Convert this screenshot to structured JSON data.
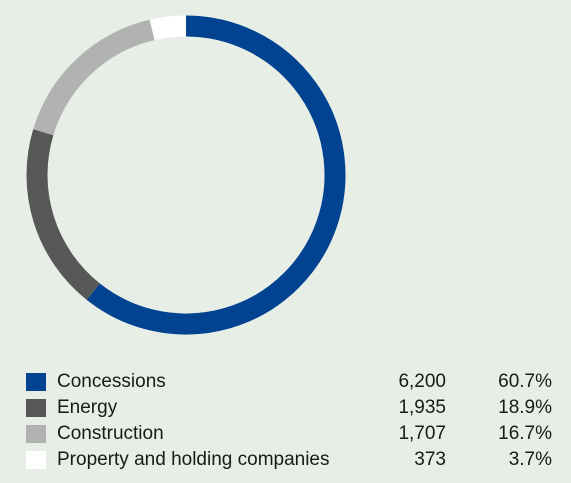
{
  "chart_data": {
    "type": "pie",
    "style": "donut",
    "categories": [
      "Concessions",
      "Energy",
      "Construction",
      "Property and holding companies"
    ],
    "values": [
      6200,
      1935,
      1707,
      373
    ],
    "percentages": [
      "60.7%",
      "18.9%",
      "16.7%",
      "3.7%"
    ],
    "value_labels": [
      "6,200",
      "1,935",
      "1,707",
      "373"
    ],
    "colors": [
      "#024391",
      "#575757",
      "#b2b2b2",
      "#ffffff"
    ],
    "legend_position": "bottom",
    "start_angle": "top, clockwise"
  }
}
